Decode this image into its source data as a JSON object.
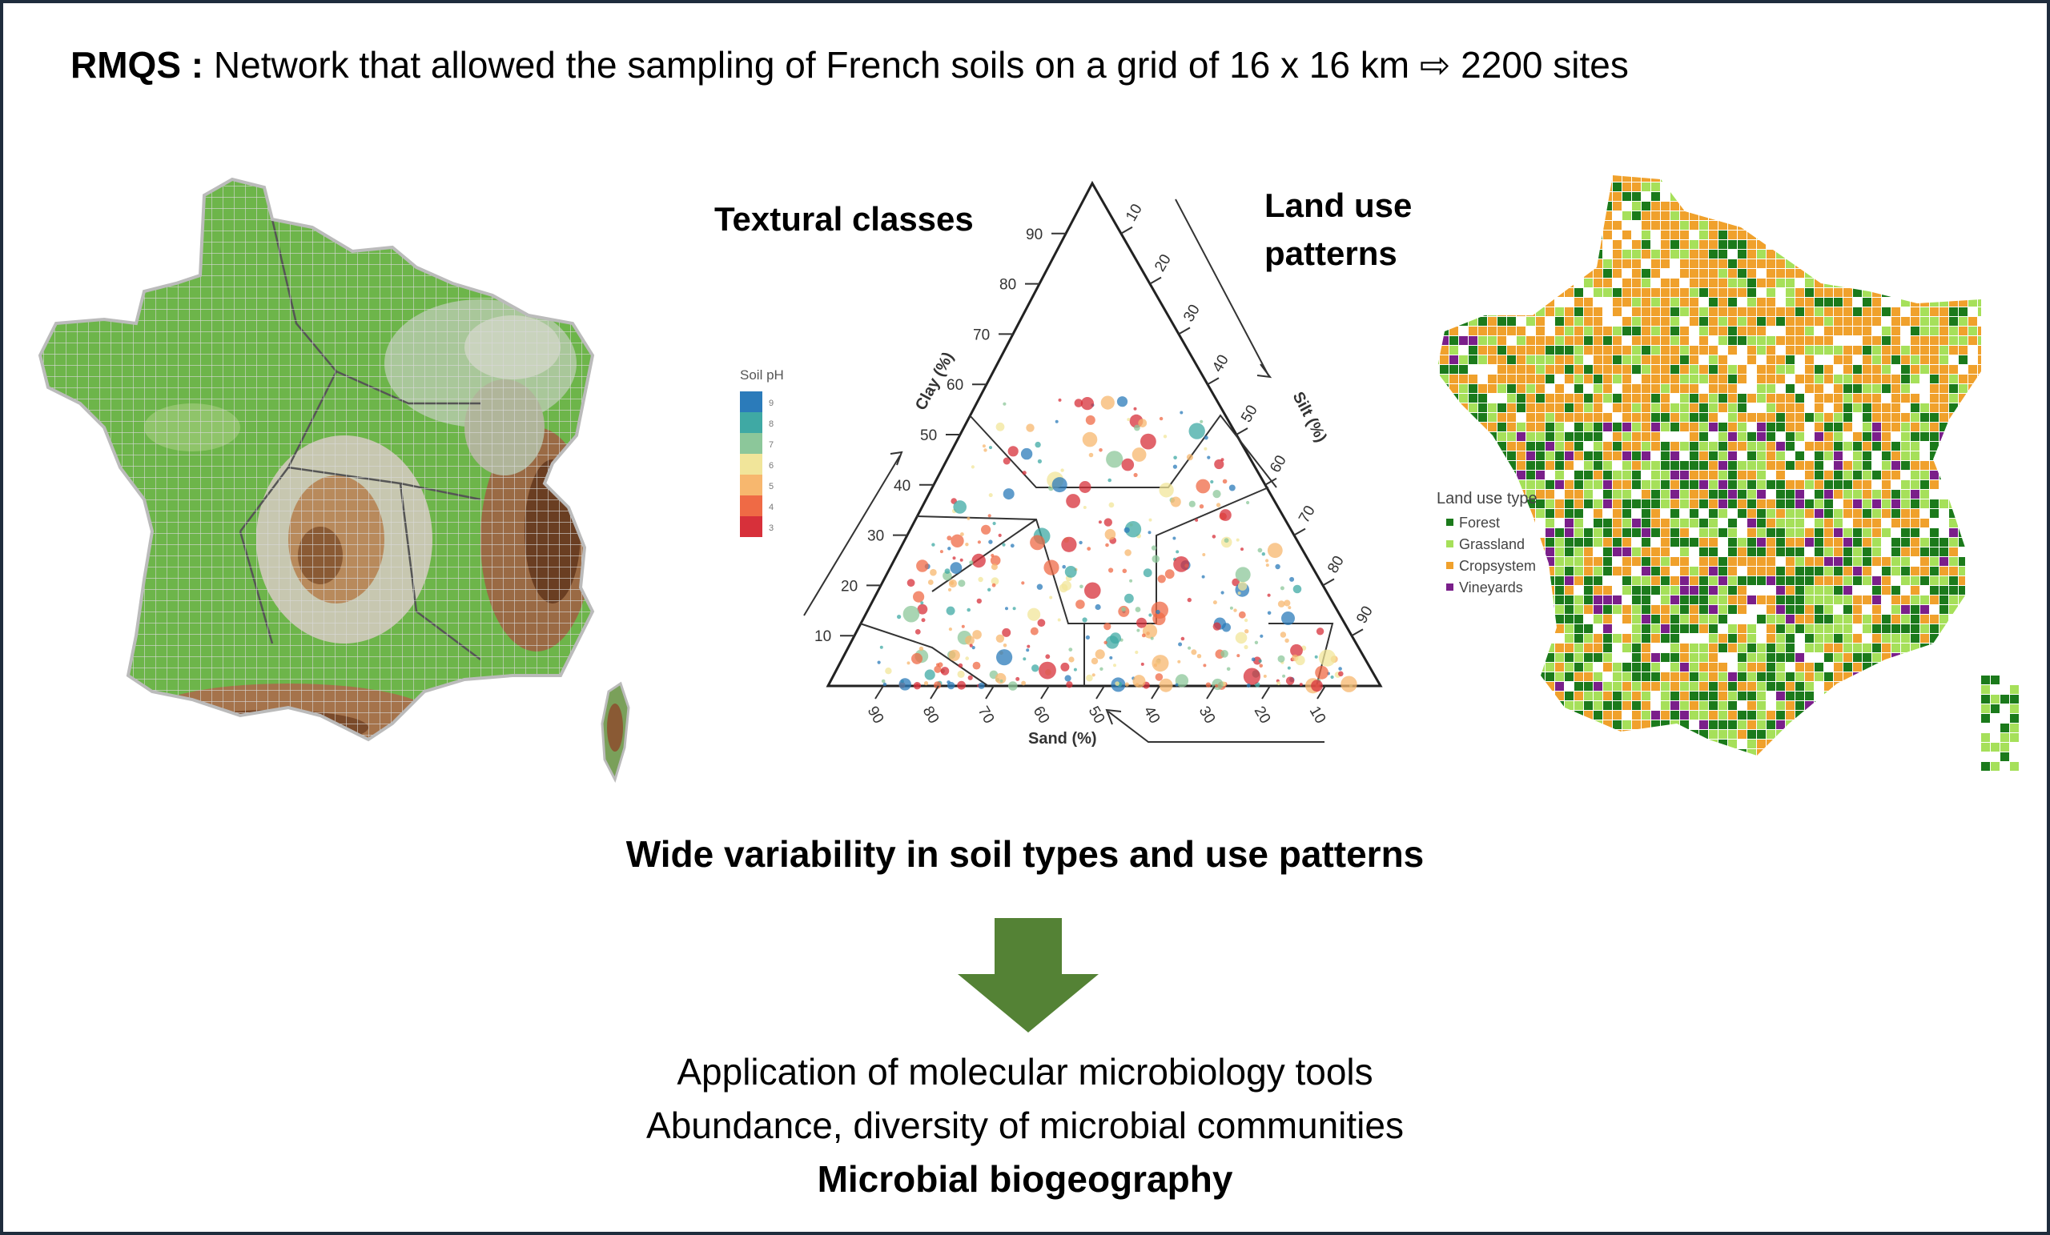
{
  "title": {
    "lead": "RMQS :",
    "text": "Network that allowed the sampling of French soils on a grid of 16 x 16 km ⇨ 2200 sites"
  },
  "ternary": {
    "heading": "Textural classes",
    "landuse_heading": "Land use patterns",
    "clay_label": "Clay (%)",
    "silt_label": "Silt (%)",
    "sand_label": "Sand (%)",
    "clay_ticks": [
      "10",
      "20",
      "30",
      "40",
      "50",
      "60",
      "70",
      "80",
      "90"
    ],
    "silt_ticks": [
      "10",
      "20",
      "30",
      "40",
      "50",
      "60",
      "70",
      "80",
      "90"
    ],
    "sand_ticks": [
      "90",
      "80",
      "70",
      "60",
      "50",
      "40",
      "30",
      "20",
      "10"
    ],
    "ph_legend": {
      "title": "Soil pH",
      "levels": [
        "9",
        "8",
        "7",
        "6",
        "5",
        "4",
        "3"
      ],
      "colors": [
        "#2b7bba",
        "#3fa9a4",
        "#8cc79a",
        "#f1e59a",
        "#f7b76e",
        "#ef6a45",
        "#d7303a"
      ]
    }
  },
  "landuse_legend": {
    "title": "Land use type",
    "items": [
      {
        "label": "Forest",
        "color": "#1b7a1b"
      },
      {
        "label": "Grassland",
        "color": "#a6e05a"
      },
      {
        "label": "Cropsystem",
        "color": "#f0a12c"
      },
      {
        "label": "Vineyards",
        "color": "#7a1f8a"
      }
    ]
  },
  "variability": "Wide variability in soil types and use patterns",
  "arrow_color": "#548235",
  "bottom": {
    "line1": "Application of molecular microbiology tools",
    "line2": "Abundance, diversity of microbial communities",
    "line3": "Microbial biogeography"
  }
}
